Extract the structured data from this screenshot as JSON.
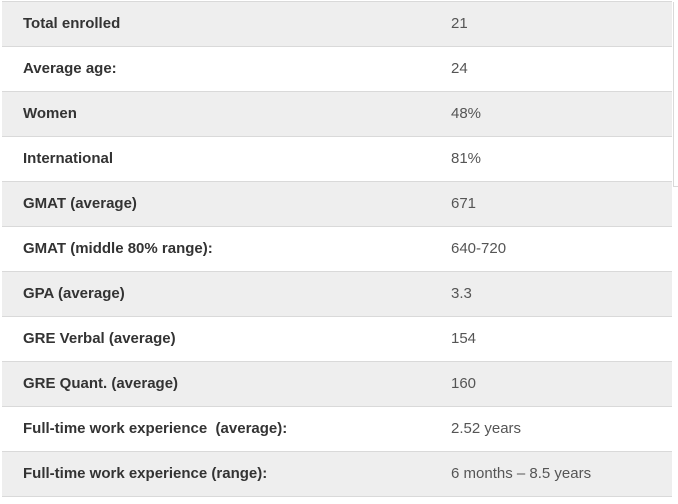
{
  "stats": {
    "rows": [
      {
        "label": "Total enrolled",
        "value": "21"
      },
      {
        "label": "Average age:",
        "value": "24"
      },
      {
        "label": "Women",
        "value": "48%"
      },
      {
        "label": "International",
        "value": "81%"
      },
      {
        "label": "GMAT (average)",
        "value": "671"
      },
      {
        "label": "GMAT (middle 80% range):",
        "value": "640-720"
      },
      {
        "label": "GPA (average)",
        "value": "3.3"
      },
      {
        "label": "GRE Verbal (average)",
        "value": "154"
      },
      {
        "label": "GRE Quant. (average)",
        "value": "160"
      },
      {
        "label": "Full-time work experience  (average):",
        "value": "2.52 years"
      },
      {
        "label": "Full-time work experience (range):",
        "value": "6 months – 8.5 years"
      }
    ]
  }
}
